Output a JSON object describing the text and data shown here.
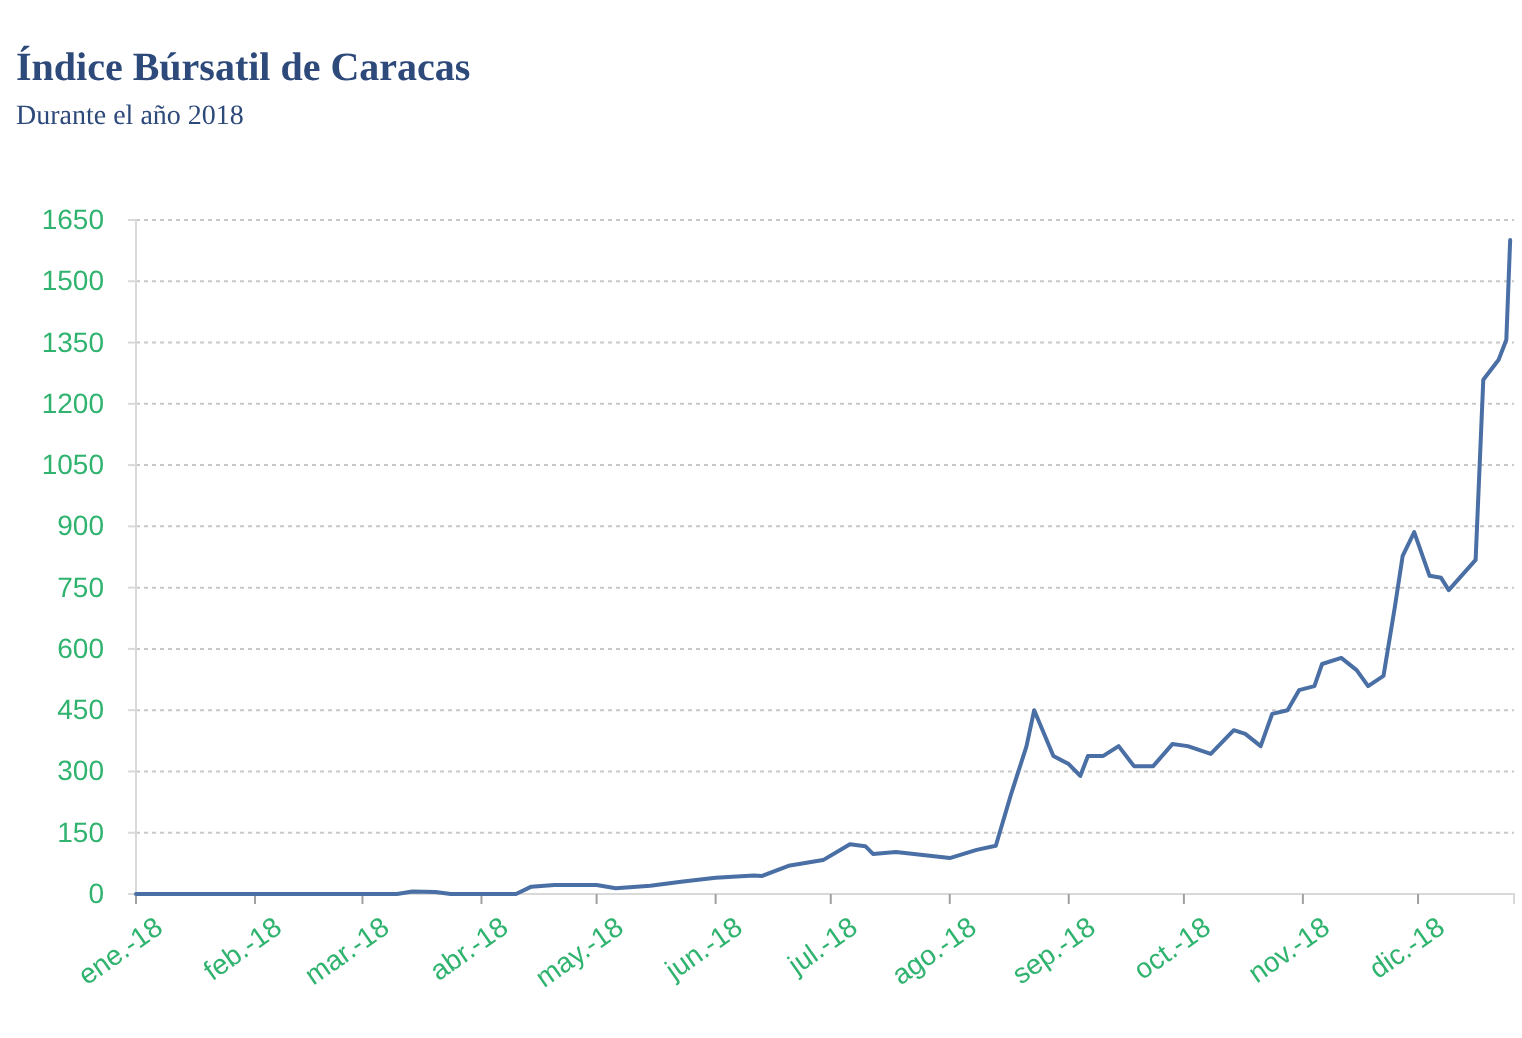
{
  "chart_data": {
    "type": "line",
    "title": "Índice Búrsatil de Caracas",
    "subtitle": "Durante el año 2018",
    "xlim": [
      "2018-01-01",
      "2018-12-26"
    ],
    "xticks": [
      {
        "value": "2018-01-01",
        "label": "ene.-18"
      },
      {
        "value": "2018-02-01",
        "label": "feb.-18"
      },
      {
        "value": "2018-03-01",
        "label": "mar.-18"
      },
      {
        "value": "2018-04-01",
        "label": "abr.-18"
      },
      {
        "value": "2018-05-01",
        "label": "may.-18"
      },
      {
        "value": "2018-06-01",
        "label": "jun.-18"
      },
      {
        "value": "2018-07-01",
        "label": "jul.-18"
      },
      {
        "value": "2018-08-01",
        "label": "ago.-18"
      },
      {
        "value": "2018-09-01",
        "label": "sep.-18"
      },
      {
        "value": "2018-10-01",
        "label": "oct.-18"
      },
      {
        "value": "2018-11-01",
        "label": "nov.-18"
      },
      {
        "value": "2018-12-01",
        "label": "dic.-18"
      }
    ],
    "ylim": [
      0,
      1650
    ],
    "yticks": [
      0,
      150,
      300,
      450,
      600,
      750,
      900,
      1050,
      1200,
      1350,
      1500,
      1650
    ],
    "grid": "y",
    "marker": "none",
    "line_style": "solid",
    "x": [
      "2018-01-01",
      "2018-03-10",
      "2018-03-14",
      "2018-03-20",
      "2018-03-24",
      "2018-04-10",
      "2018-04-14",
      "2018-04-20",
      "2018-05-01",
      "2018-05-06",
      "2018-05-15",
      "2018-05-23",
      "2018-06-01",
      "2018-06-11",
      "2018-06-13",
      "2018-06-20",
      "2018-06-29",
      "2018-07-06",
      "2018-07-10",
      "2018-07-12",
      "2018-07-18",
      "2018-08-01",
      "2018-08-08",
      "2018-08-13",
      "2018-08-17",
      "2018-08-21",
      "2018-08-23",
      "2018-08-28",
      "2018-09-01",
      "2018-09-04",
      "2018-09-06",
      "2018-09-10",
      "2018-09-14",
      "2018-09-18",
      "2018-09-23",
      "2018-09-28",
      "2018-10-02",
      "2018-10-08",
      "2018-10-14",
      "2018-10-17",
      "2018-10-21",
      "2018-10-24",
      "2018-10-28",
      "2018-10-31",
      "2018-11-04",
      "2018-11-06",
      "2018-11-11",
      "2018-11-15",
      "2018-11-18",
      "2018-11-22",
      "2018-11-25",
      "2018-11-27",
      "2018-11-30",
      "2018-12-04",
      "2018-12-07",
      "2018-12-09",
      "2018-12-16",
      "2018-12-18",
      "2018-12-22",
      "2018-12-24",
      "2018-12-25"
    ],
    "series": [
      {
        "color": "#4a6fa5",
        "values": [
          0,
          0,
          6,
          5,
          0,
          0,
          18,
          22,
          22,
          14,
          20,
          30,
          40,
          45,
          44,
          69,
          83,
          122,
          117,
          98,
          103,
          88,
          108,
          118,
          245,
          362,
          450,
          338,
          318,
          289,
          338,
          338,
          362,
          313,
          313,
          367,
          362,
          343,
          401,
          392,
          362,
          441,
          450,
          499,
          509,
          563,
          578,
          548,
          509,
          534,
          705,
          828,
          886,
          779,
          774,
          744,
          818,
          1259,
          1308,
          1357,
          1601
        ]
      }
    ]
  }
}
